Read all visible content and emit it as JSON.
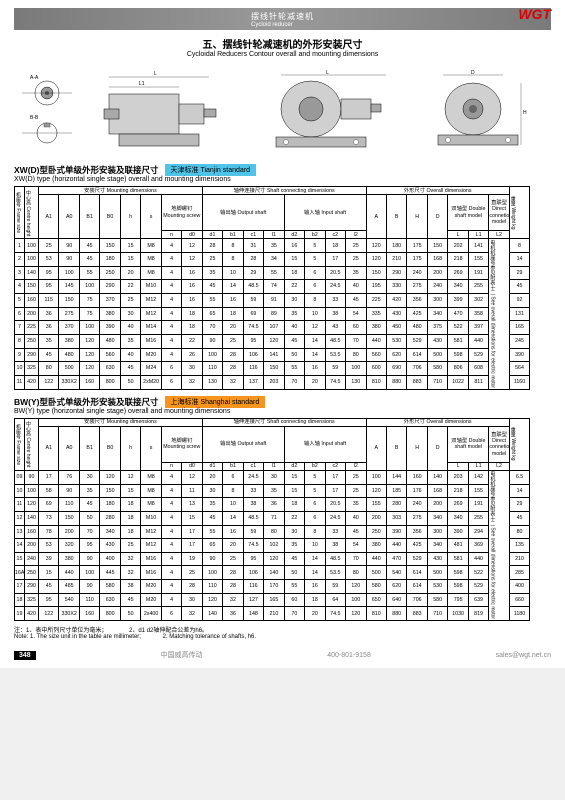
{
  "logo": "WGT",
  "header": {
    "cn": "摆线针轮减速机",
    "en": "Cycloid reducer"
  },
  "main_title": {
    "cn": "五、摆线针轮减速机的外形安装尺寸",
    "en": "Cycloidal Reducers Contour overall and mounting dimensions"
  },
  "section1": {
    "title_cn": "XW(D)型卧式单级外形安装及联接尺寸",
    "badge": "天津标准 Tianjin standard",
    "title_en": "XW(D) type (horizontal single stage) overall and mounting dimensions"
  },
  "section2": {
    "title_cn": "BW(Y)型卧式单级外形安装及联接尺寸",
    "badge": "上海标准 Shanghai standard",
    "title_en": "BW(Y) type (horizontal single stage) overall and mounting dimensions"
  },
  "headers": {
    "frame": "机座号 Frame size",
    "height": "中心高 Centre height",
    "mounting": "安装尺寸 Mounting dimensions",
    "shaft": "轴伸连接尺寸 Shaft connecting dimensions",
    "overall": "外形尺寸 Overall dimensions",
    "weight": "重量 Weight kg",
    "screw": "地脚螺钉 Mounting screw",
    "output": "输出轴 Output shaft",
    "input": "输入轴 Input shaft",
    "double": "双轴型 Double shaft model",
    "direct": "直联型 Direct connetion model",
    "note": "电机机座号参见附表十二 See overall dimenstions for electric motor",
    "cols": [
      "A1",
      "A0",
      "B1",
      "B0",
      "h",
      "s",
      "n",
      "d0",
      "d1",
      "b1",
      "c1",
      "l1",
      "d2",
      "b2",
      "c2",
      "l2",
      "A",
      "B",
      "H",
      "D",
      "L",
      "L1",
      "L",
      "L1",
      "L2"
    ]
  },
  "table1_rows": [
    [
      "1",
      "100",
      "25",
      "90",
      "45",
      "150",
      "15",
      "M8",
      "4",
      "12",
      "28",
      "8",
      "31",
      "35",
      "16",
      "5",
      "18",
      "25",
      "120",
      "180",
      "175",
      "150",
      "202",
      "141",
      "",
      "8"
    ],
    [
      "2",
      "100",
      "53",
      "90",
      "45",
      "180",
      "15",
      "M8",
      "4",
      "12",
      "25",
      "8",
      "28",
      "34",
      "15",
      "5",
      "17",
      "25",
      "120",
      "210",
      "175",
      "168",
      "218",
      "155",
      "",
      "14"
    ],
    [
      "3",
      "140",
      "95",
      "100",
      "55",
      "250",
      "20",
      "M8",
      "4",
      "16",
      "35",
      "10",
      "29",
      "55",
      "18",
      "6",
      "20.5",
      "35",
      "150",
      "290",
      "240",
      "200",
      "269",
      "191",
      "",
      "29"
    ],
    [
      "4",
      "150",
      "95",
      "145",
      "100",
      "290",
      "22",
      "M10",
      "4",
      "16",
      "45",
      "14",
      "48.5",
      "74",
      "22",
      "6",
      "24.5",
      "40",
      "195",
      "330",
      "275",
      "240",
      "340",
      "255",
      "",
      "45"
    ],
    [
      "5",
      "160",
      "115",
      "150",
      "75",
      "370",
      "25",
      "M12",
      "4",
      "16",
      "55",
      "16",
      "59",
      "91",
      "30",
      "8",
      "33",
      "45",
      "225",
      "420",
      "356",
      "300",
      "399",
      "302",
      "",
      "92"
    ],
    [
      "6",
      "200",
      "36",
      "275",
      "75",
      "380",
      "30",
      "M12",
      "4",
      "18",
      "65",
      "18",
      "69",
      "89",
      "35",
      "10",
      "38",
      "54",
      "335",
      "430",
      "425",
      "340",
      "470",
      "358",
      "",
      "131"
    ],
    [
      "7",
      "225",
      "36",
      "370",
      "100",
      "390",
      "40",
      "M14",
      "4",
      "18",
      "70",
      "20",
      "74.5",
      "107",
      "40",
      "12",
      "43",
      "60",
      "380",
      "450",
      "480",
      "375",
      "522",
      "397",
      "",
      "165"
    ],
    [
      "8",
      "250",
      "35",
      "380",
      "120",
      "480",
      "35",
      "M16",
      "4",
      "22",
      "90",
      "25",
      "95",
      "120",
      "45",
      "14",
      "48.5",
      "70",
      "440",
      "530",
      "529",
      "430",
      "581",
      "440",
      "",
      "245"
    ],
    [
      "9",
      "290",
      "45",
      "480",
      "120",
      "560",
      "40",
      "M20",
      "4",
      "26",
      "100",
      "28",
      "106",
      "141",
      "50",
      "14",
      "53.5",
      "80",
      "560",
      "620",
      "614",
      "500",
      "598",
      "529",
      "",
      "390"
    ],
    [
      "10",
      "325",
      "80",
      "500",
      "120",
      "630",
      "45",
      "M24",
      "6",
      "30",
      "110",
      "28",
      "116",
      "150",
      "55",
      "16",
      "59",
      "100",
      "600",
      "690",
      "706",
      "580",
      "806",
      "608",
      "",
      "564"
    ],
    [
      "11",
      "420",
      "122",
      "330X2",
      "160",
      "800",
      "50",
      "2xM20",
      "6",
      "32",
      "130",
      "32",
      "137",
      "203",
      "70",
      "20",
      "74.5",
      "130",
      "810",
      "880",
      "883",
      "710",
      "1022",
      "811",
      "",
      "1160"
    ]
  ],
  "table2_rows": [
    [
      "09",
      "90",
      "17",
      "76",
      "30",
      "120",
      "12",
      "M8",
      "4",
      "12",
      "20",
      "6",
      "24.5",
      "30",
      "15",
      "5",
      "17",
      "25",
      "100",
      "144",
      "160",
      "140",
      "203",
      "142",
      "",
      "6.5"
    ],
    [
      "10",
      "100",
      "58",
      "90",
      "35",
      "150",
      "15",
      "M8",
      "4",
      "11",
      "30",
      "8",
      "33",
      "35",
      "15",
      "5",
      "17",
      "25",
      "120",
      "185",
      "176",
      "168",
      "218",
      "155",
      "",
      "14"
    ],
    [
      "11",
      "120",
      "69",
      "110",
      "45",
      "180",
      "18",
      "M8",
      "4",
      "13",
      "35",
      "10",
      "38",
      "36",
      "18",
      "6",
      "20.5",
      "35",
      "155",
      "280",
      "240",
      "200",
      "269",
      "191",
      "",
      "29"
    ],
    [
      "12",
      "140",
      "73",
      "150",
      "50",
      "280",
      "18",
      "M10",
      "4",
      "15",
      "45",
      "14",
      "48.5",
      "71",
      "22",
      "6",
      "24.5",
      "40",
      "200",
      "303",
      "275",
      "340",
      "340",
      "255",
      "",
      "45"
    ],
    [
      "13",
      "160",
      "78",
      "200",
      "70",
      "340",
      "18",
      "M12",
      "4",
      "17",
      "55",
      "16",
      "59",
      "80",
      "30",
      "8",
      "33",
      "45",
      "250",
      "390",
      "356",
      "300",
      "390",
      "294",
      "",
      "80"
    ],
    [
      "14",
      "200",
      "53",
      "320",
      "95",
      "430",
      "25",
      "M12",
      "4",
      "17",
      "65",
      "20",
      "74.5",
      "102",
      "35",
      "10",
      "38",
      "54",
      "380",
      "440",
      "425",
      "340",
      "481",
      "369",
      "",
      "135"
    ],
    [
      "15",
      "240",
      "39",
      "380",
      "90",
      "400",
      "32",
      "M16",
      "4",
      "19",
      "90",
      "25",
      "95",
      "120",
      "45",
      "14",
      "48.5",
      "70",
      "440",
      "470",
      "529",
      "430",
      "581",
      "440",
      "",
      "210"
    ],
    [
      "16A",
      "250",
      "15",
      "440",
      "100",
      "445",
      "32",
      "M16",
      "4",
      "25",
      "100",
      "28",
      "106",
      "140",
      "50",
      "14",
      "53.5",
      "80",
      "500",
      "540",
      "614",
      "500",
      "598",
      "522",
      "",
      "285"
    ],
    [
      "17",
      "290",
      "45",
      "485",
      "90",
      "580",
      "38",
      "M20",
      "4",
      "28",
      "110",
      "28",
      "116",
      "170",
      "55",
      "16",
      "59",
      "120",
      "580",
      "620",
      "614",
      "530",
      "598",
      "529",
      "",
      "400"
    ],
    [
      "18",
      "325",
      "95",
      "540",
      "110",
      "630",
      "45",
      "M20",
      "4",
      "30",
      "120",
      "32",
      "127",
      "165",
      "60",
      "18",
      "64",
      "100",
      "650",
      "640",
      "706",
      "580",
      "795",
      "639",
      "",
      "660"
    ],
    [
      "19",
      "420",
      "122",
      "330X2",
      "160",
      "800",
      "50",
      "2x400",
      "6",
      "32",
      "140",
      "36",
      "148",
      "210",
      "70",
      "20",
      "74.5",
      "120",
      "810",
      "880",
      "883",
      "710",
      "1030",
      "819",
      "",
      "1180"
    ]
  ],
  "notes": {
    "line1_cn": "注：1、表中所列尺寸单位为毫米；",
    "line1_2cn": "2、d1 d2轴伸配合公差为h6。",
    "line2_en": "Note: 1. The size unit in the table are millimeter;",
    "line2_2en": "2. Matching tolerance of shafts, h6."
  },
  "footer": {
    "page": "348",
    "company": "中国威高传动",
    "phone": "400-801-9158",
    "email": "sales@wgt.net.cn"
  }
}
